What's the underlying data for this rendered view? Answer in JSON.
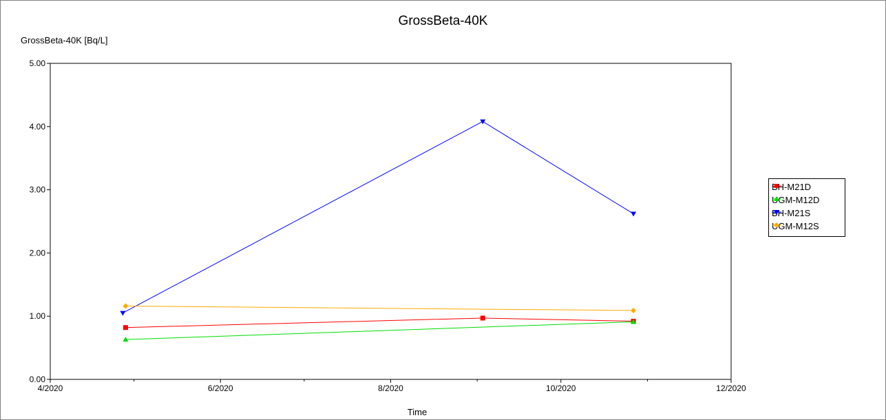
{
  "chart_data": {
    "type": "line",
    "title": "GrossBeta-40K",
    "ylabel": "GrossBeta-40K [Bq/L]",
    "xlabel": "Time",
    "ylim": [
      0,
      5
    ],
    "yticks": [
      "0.00",
      "1.00",
      "2.00",
      "3.00",
      "4.00",
      "5.00"
    ],
    "xlim": [
      "2020-04-01",
      "2020-12-01"
    ],
    "xticks": [
      {
        "date": "2020-04-01",
        "label": "4/2020"
      },
      {
        "date": "2020-06-01",
        "label": "6/2020"
      },
      {
        "date": "2020-08-01",
        "label": "8/2020"
      },
      {
        "date": "2020-10-01",
        "label": "10/2020"
      },
      {
        "date": "2020-12-01",
        "label": "12/2020"
      }
    ],
    "minor_xticks": [
      "2020-05-01",
      "2020-07-01",
      "2020-09-01",
      "2020-11-01"
    ],
    "grid": false,
    "legend_position": "right",
    "series": [
      {
        "name": "BH-M21D",
        "color": "#ff0000",
        "marker": "square",
        "points": [
          {
            "x": "2020-04-28",
            "y": 0.82
          },
          {
            "x": "2020-09-03",
            "y": 0.97
          },
          {
            "x": "2020-10-27",
            "y": 0.92
          }
        ]
      },
      {
        "name": "UGM-M12D",
        "color": "#00dd00",
        "marker": "triangle-up",
        "points": [
          {
            "x": "2020-04-28",
            "y": 0.63
          },
          {
            "x": "2020-10-27",
            "y": 0.91
          }
        ]
      },
      {
        "name": "BH-M21S",
        "color": "#0000ff",
        "marker": "triangle-down",
        "points": [
          {
            "x": "2020-04-27",
            "y": 1.05
          },
          {
            "x": "2020-09-03",
            "y": 4.08
          },
          {
            "x": "2020-10-27",
            "y": 2.62
          }
        ]
      },
      {
        "name": "UGM-M12S",
        "color": "#ffaa00",
        "marker": "diamond",
        "points": [
          {
            "x": "2020-04-28",
            "y": 1.16
          },
          {
            "x": "2020-10-27",
            "y": 1.09
          }
        ]
      }
    ]
  }
}
